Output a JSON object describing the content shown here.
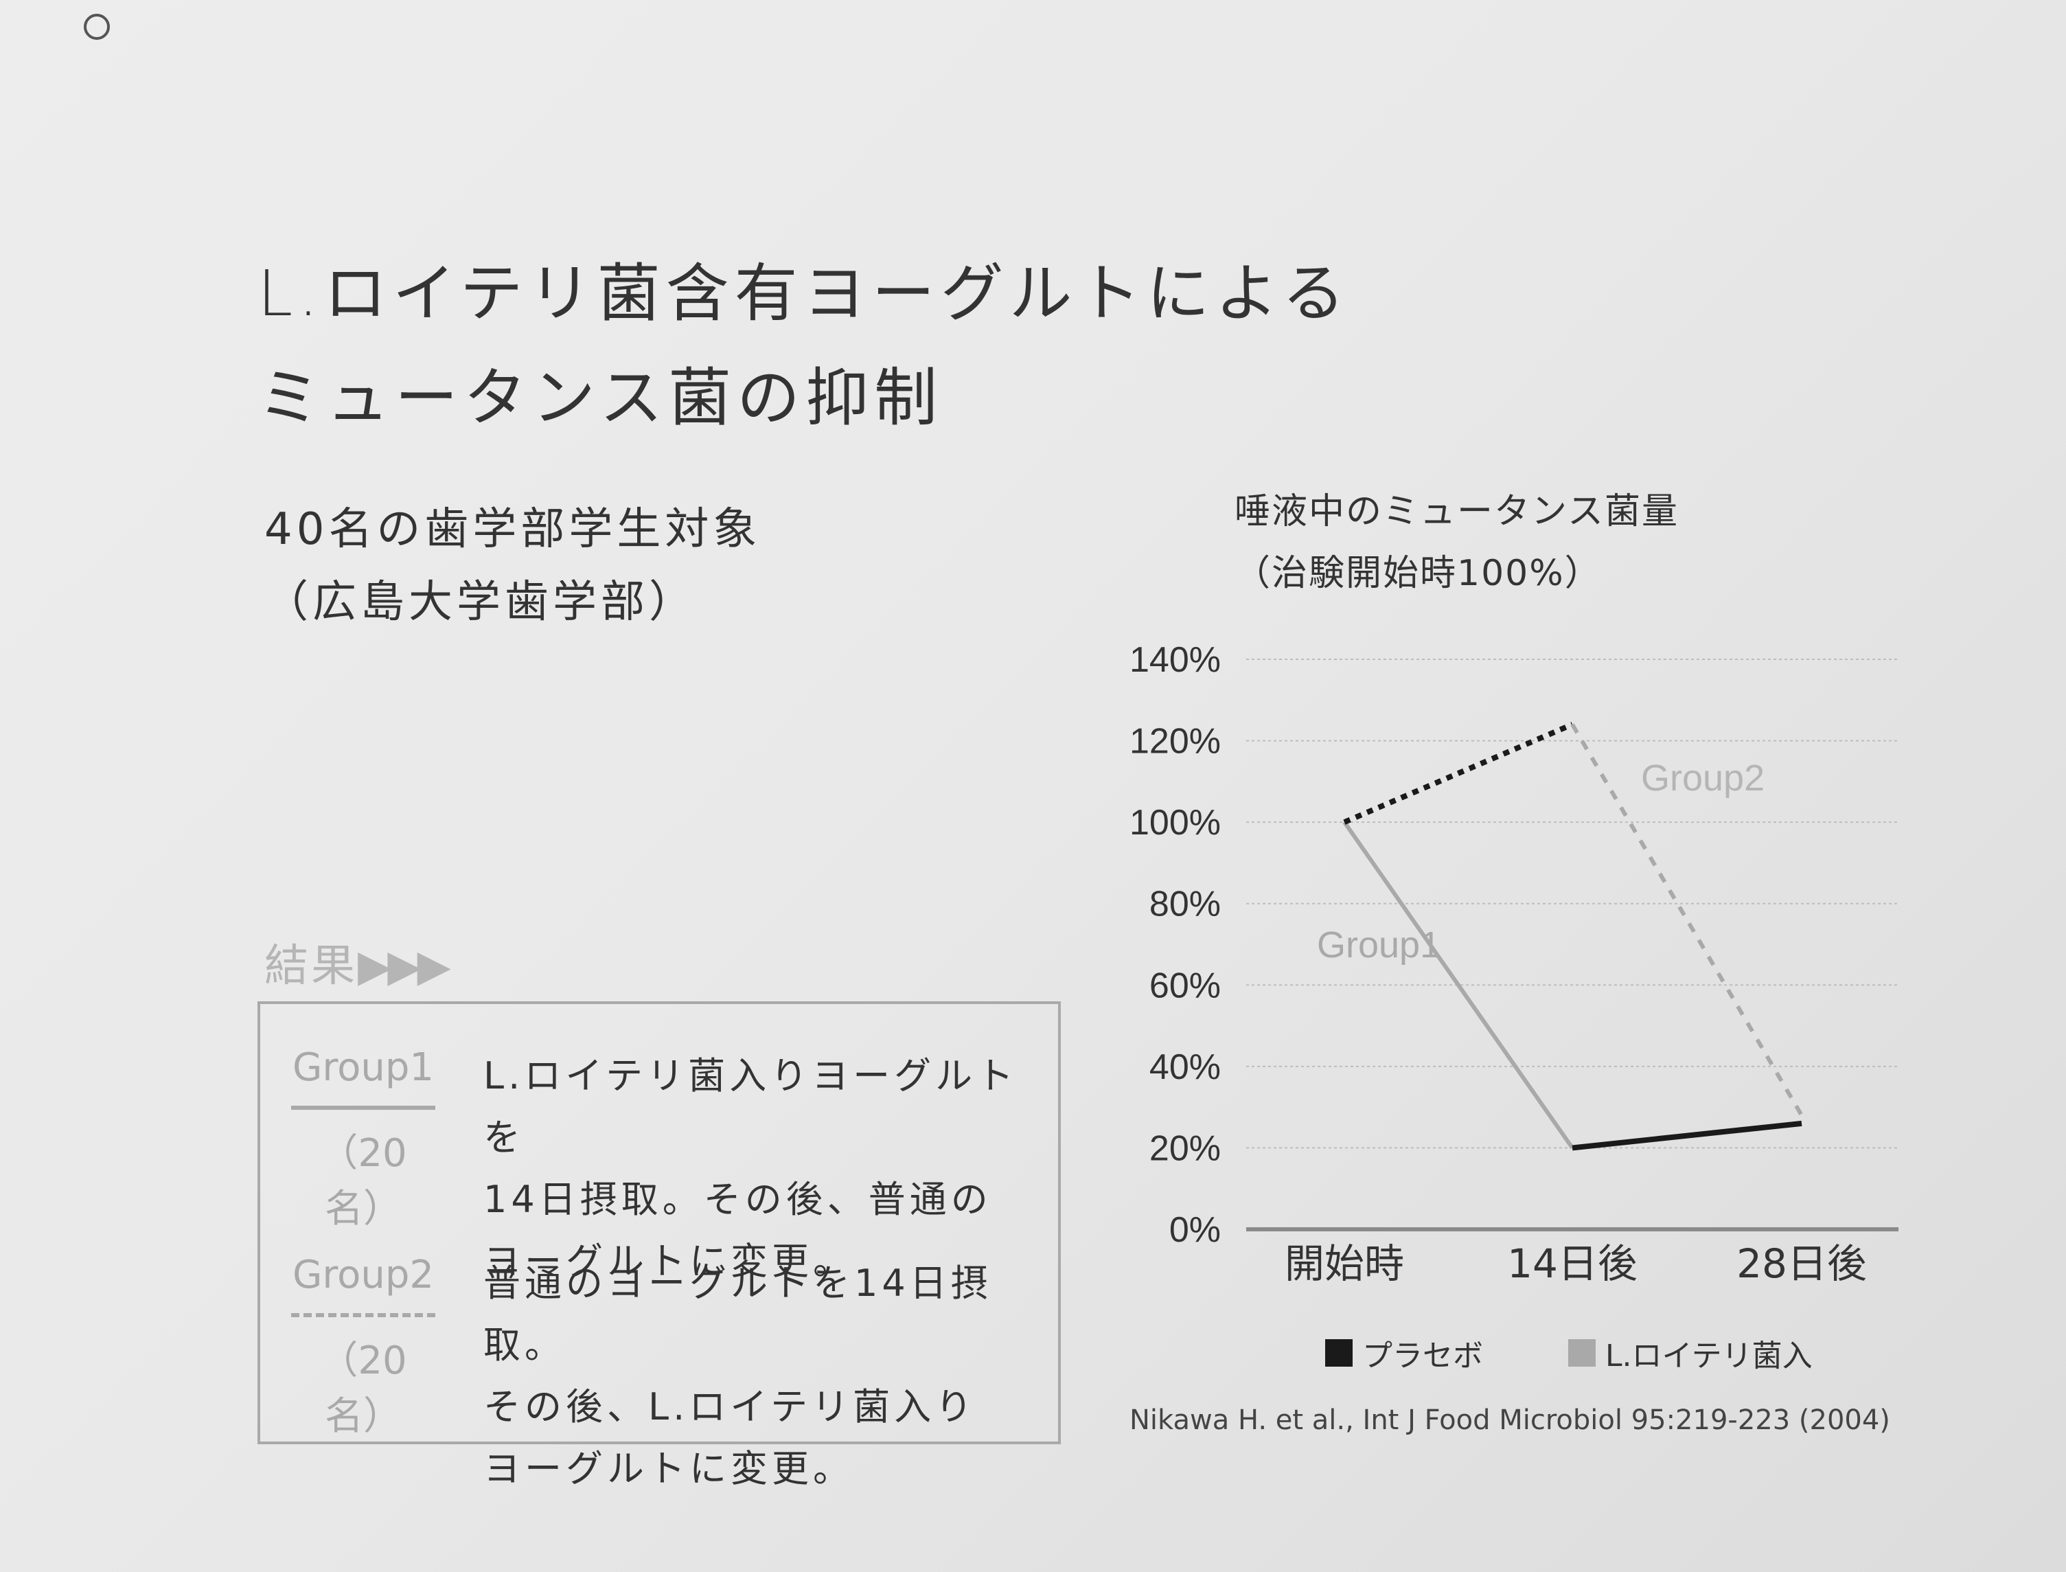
{
  "page": {
    "title_line1": "L.ロイテリ菌含有ヨーグルトによる",
    "title_line2": "ミュータンス菌の抑制",
    "subject_line1": "40名の歯学部学生対象",
    "subject_line2": "（広島大学歯学部）",
    "results_label": "結果",
    "results_arrows": "▶▶▶",
    "citation": "Nikawa H. et al., Int J Food Microbiol 95:219-223 (2004)"
  },
  "groups": [
    {
      "name": "Group1",
      "count": "（20名）",
      "line_style": "solid",
      "desc_lines": [
        "L.ロイテリ菌入りヨーグルトを",
        "14日摂取。その後、普通の",
        "ヨーグルトに変更。"
      ]
    },
    {
      "name": "Group2",
      "count": "（20名）",
      "line_style": "dashed",
      "desc_lines": [
        "普通のヨーグルトを14日摂取。",
        "その後、L.ロイテリ菌入り",
        "ヨーグルトに変更。"
      ]
    }
  ],
  "chart_data": {
    "type": "line",
    "title_line1": "唾液中のミュータンス菌量",
    "title_line2": "（治験開始時100%）",
    "categories": [
      "開始時",
      "14日後",
      "28日後"
    ],
    "yticks": [
      "0%",
      "20%",
      "40%",
      "60%",
      "80%",
      "100%",
      "120%",
      "140%"
    ],
    "ylim": [
      0,
      140
    ],
    "grid": true,
    "series": [
      {
        "name": "Group1",
        "style": "solid",
        "values": [
          100,
          20,
          26
        ]
      },
      {
        "name": "Group2",
        "style": "dashed",
        "values": [
          100,
          124,
          28
        ]
      }
    ],
    "treatment_legend": [
      {
        "label": "プラセボ",
        "color": "#1a1a1a"
      },
      {
        "label": "L.ロイテリ菌入",
        "color": "#a9a9a9"
      }
    ],
    "segment_treatments": {
      "Group1": [
        "L.ロイテリ菌入",
        "プラセボ"
      ],
      "Group2": [
        "プラセボ",
        "L.ロイテリ菌入"
      ]
    },
    "series_labels": [
      "Group1",
      "Group2"
    ]
  }
}
